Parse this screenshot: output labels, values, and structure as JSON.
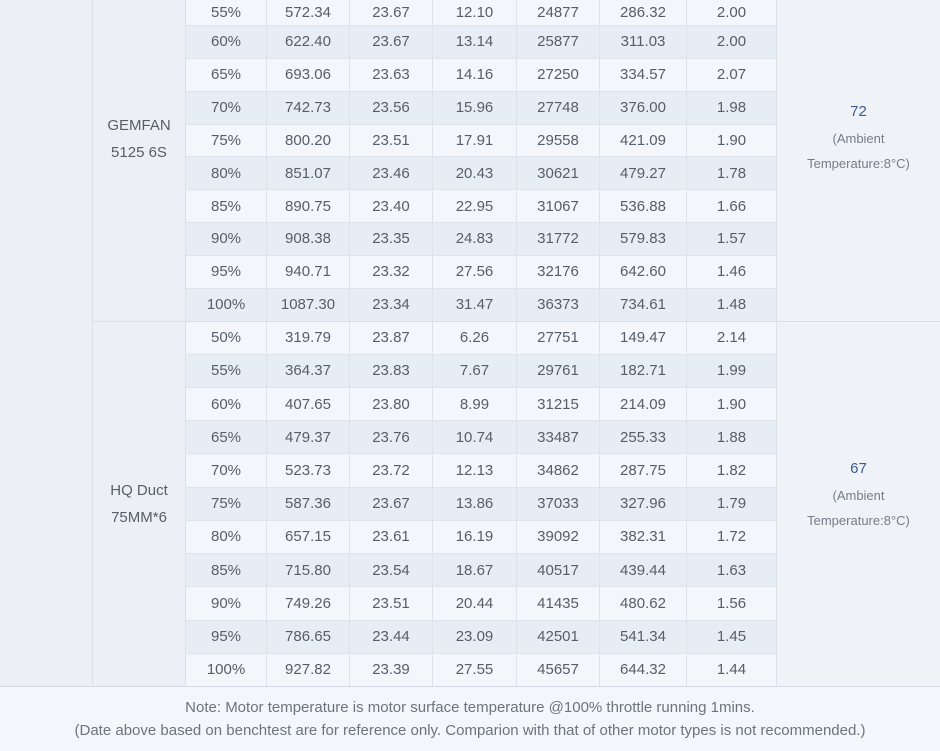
{
  "table": {
    "columns": [
      "throttle",
      "thrust_g",
      "voltage_v",
      "current_a",
      "rpm",
      "power_w",
      "efficiency_g_w"
    ],
    "sections": [
      {
        "name_lines": [
          "GEMFAN",
          "5125 6S"
        ],
        "temperature": "72",
        "ambient": "(Ambient Temperature:8°C)",
        "rows": [
          [
            "55%",
            "572.34",
            "23.67",
            "12.10",
            "24877",
            "286.32",
            "2.00"
          ],
          [
            "60%",
            "622.40",
            "23.67",
            "13.14",
            "25877",
            "311.03",
            "2.00"
          ],
          [
            "65%",
            "693.06",
            "23.63",
            "14.16",
            "27250",
            "334.57",
            "2.07"
          ],
          [
            "70%",
            "742.73",
            "23.56",
            "15.96",
            "27748",
            "376.00",
            "1.98"
          ],
          [
            "75%",
            "800.20",
            "23.51",
            "17.91",
            "29558",
            "421.09",
            "1.90"
          ],
          [
            "80%",
            "851.07",
            "23.46",
            "20.43",
            "30621",
            "479.27",
            "1.78"
          ],
          [
            "85%",
            "890.75",
            "23.40",
            "22.95",
            "31067",
            "536.88",
            "1.66"
          ],
          [
            "90%",
            "908.38",
            "23.35",
            "24.83",
            "31772",
            "579.83",
            "1.57"
          ],
          [
            "95%",
            "940.71",
            "23.32",
            "27.56",
            "32176",
            "642.60",
            "1.46"
          ],
          [
            "100%",
            "1087.30",
            "23.34",
            "31.47",
            "36373",
            "734.61",
            "1.48"
          ]
        ]
      },
      {
        "name_lines": [
          "HQ Duct",
          "75MM*6"
        ],
        "temperature": "67",
        "ambient": "(Ambient Temperature:8°C)",
        "rows": [
          [
            "50%",
            "319.79",
            "23.87",
            "6.26",
            "27751",
            "149.47",
            "2.14"
          ],
          [
            "55%",
            "364.37",
            "23.83",
            "7.67",
            "29761",
            "182.71",
            "1.99"
          ],
          [
            "60%",
            "407.65",
            "23.80",
            "8.99",
            "31215",
            "214.09",
            "1.90"
          ],
          [
            "65%",
            "479.37",
            "23.76",
            "10.74",
            "33487",
            "255.33",
            "1.88"
          ],
          [
            "70%",
            "523.73",
            "23.72",
            "12.13",
            "34862",
            "287.75",
            "1.82"
          ],
          [
            "75%",
            "587.36",
            "23.67",
            "13.86",
            "37033",
            "327.96",
            "1.79"
          ],
          [
            "80%",
            "657.15",
            "23.61",
            "16.19",
            "39092",
            "382.31",
            "1.72"
          ],
          [
            "85%",
            "715.80",
            "23.54",
            "18.67",
            "40517",
            "439.44",
            "1.63"
          ],
          [
            "90%",
            "749.26",
            "23.51",
            "20.44",
            "41435",
            "480.62",
            "1.56"
          ],
          [
            "95%",
            "786.65",
            "23.44",
            "23.09",
            "42501",
            "541.34",
            "1.45"
          ],
          [
            "100%",
            "927.82",
            "23.39",
            "27.55",
            "45657",
            "644.32",
            "1.44"
          ]
        ]
      }
    ]
  },
  "notes": {
    "line1": "Note: Motor temperature is motor surface temperature @100% throttle running 1mins.",
    "line2": "(Date above based on benchtest are for reference only. Comparion with that of other motor types is not recommended.)"
  },
  "colors": {
    "row_light": "#f3f6fa",
    "row_dark": "#e7edf4",
    "merged_cell_bg": "#ecf0f6",
    "temp_cell_bg": "#eff3f8",
    "border": "#dee3ea",
    "text": "#575e67",
    "temp_accent": "#3f5c92",
    "note_text": "#6d747e"
  }
}
